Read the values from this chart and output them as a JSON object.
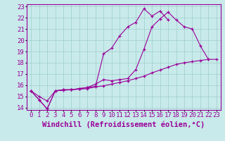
{
  "xlabel": "Windchill (Refroidissement éolien,°C)",
  "bg_color": "#c8eaea",
  "line_color": "#990099",
  "grid_color": "#a0cccc",
  "xlim": [
    -0.5,
    23.5
  ],
  "ylim": [
    13.8,
    23.2
  ],
  "xticks": [
    0,
    1,
    2,
    3,
    4,
    5,
    6,
    7,
    8,
    9,
    10,
    11,
    12,
    13,
    14,
    15,
    16,
    17,
    18,
    19,
    20,
    21,
    22,
    23
  ],
  "yticks": [
    14,
    15,
    16,
    17,
    18,
    19,
    20,
    21,
    22,
    23
  ],
  "line1_x": [
    0,
    1,
    2,
    3,
    4,
    5,
    6,
    7,
    8,
    9,
    10,
    11,
    12,
    13,
    14,
    15,
    16,
    17
  ],
  "line1_y": [
    15.5,
    14.7,
    13.9,
    15.5,
    15.6,
    15.6,
    15.7,
    15.8,
    15.9,
    18.8,
    19.3,
    20.4,
    21.2,
    21.6,
    22.8,
    22.15,
    22.6,
    21.8
  ],
  "line2_x": [
    0,
    1,
    2,
    3,
    4,
    5,
    6,
    7,
    8,
    9,
    10,
    11,
    12,
    13,
    14,
    15,
    16,
    17,
    18,
    19,
    20,
    21,
    22
  ],
  "line2_y": [
    15.5,
    14.7,
    13.9,
    15.5,
    15.6,
    15.6,
    15.7,
    15.8,
    16.1,
    16.5,
    16.4,
    16.5,
    16.6,
    17.4,
    19.2,
    21.2,
    21.9,
    22.5,
    21.8,
    21.2,
    21.0,
    19.5,
    18.3
  ],
  "line3_x": [
    0,
    1,
    2,
    3,
    4,
    5,
    6,
    7,
    8,
    9,
    10,
    11,
    12,
    13,
    14,
    15,
    16,
    17,
    18,
    19,
    20,
    21,
    22,
    23
  ],
  "line3_y": [
    15.5,
    15.0,
    14.6,
    15.5,
    15.55,
    15.6,
    15.65,
    15.7,
    15.85,
    15.95,
    16.1,
    16.25,
    16.4,
    16.6,
    16.8,
    17.1,
    17.35,
    17.6,
    17.85,
    18.0,
    18.1,
    18.2,
    18.3,
    18.3
  ],
  "font_family": "monospace",
  "xlabel_fontsize": 7.5,
  "tick_fontsize": 6.5
}
